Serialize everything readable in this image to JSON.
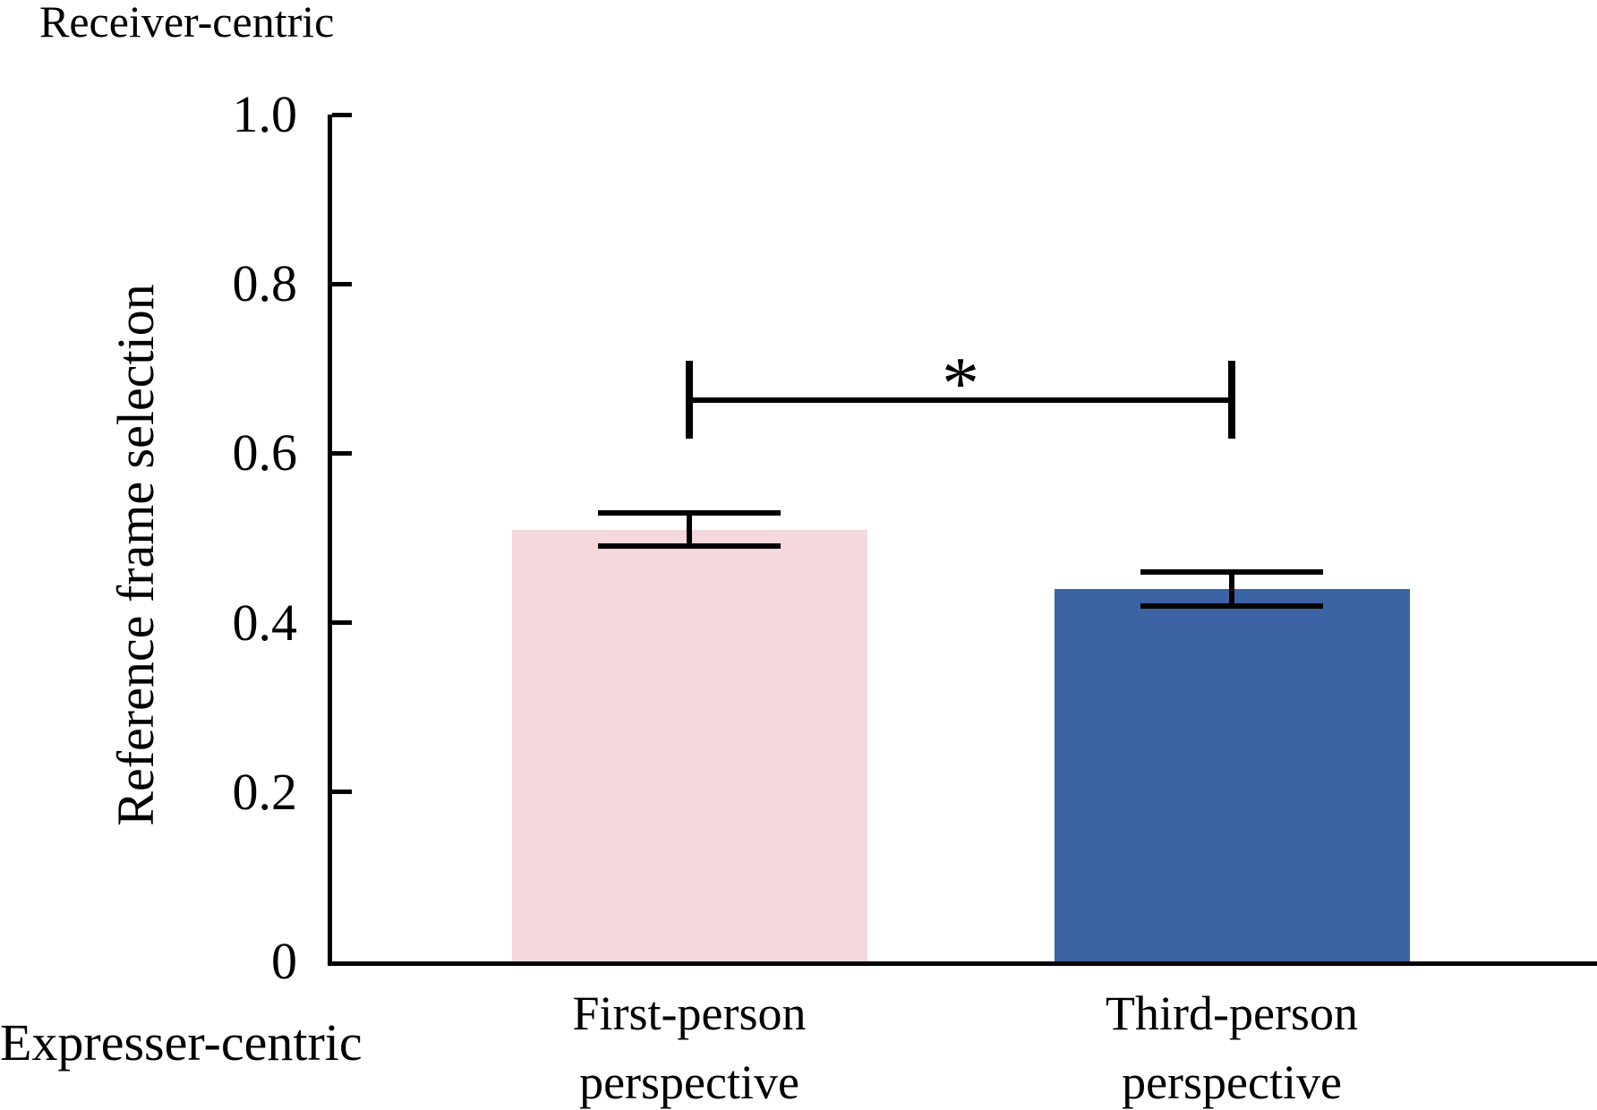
{
  "page": {
    "top_left_label": "Receiver-centric",
    "bottom_left_label": "Expresser-centric"
  },
  "chart_data": {
    "type": "bar",
    "title": "",
    "xlabel": "",
    "ylabel": "Reference frame selection",
    "categories": [
      "First-person\nperspective",
      "Third-person\nperspective"
    ],
    "values": [
      0.51,
      0.44
    ],
    "error_bars": [
      0.02,
      0.02
    ],
    "bar_colors": [
      "#F5D8DB",
      "#3C63A4"
    ],
    "axis_color": "#000000",
    "ylim": [
      0,
      1.0
    ],
    "y_tick_labels": [
      "1.0",
      "0.8",
      "0.6",
      "0.4",
      "0.2",
      "0"
    ],
    "y_tick_values": [
      1.0,
      0.8,
      0.6,
      0.4,
      0.2,
      0
    ],
    "grid": false,
    "legend": "none",
    "y_axis_endpoint_meanings": {
      "top": "Receiver-centric",
      "bottom": "Expresser-centric"
    },
    "significance": {
      "pair": [
        0,
        1
      ],
      "label": "*",
      "bar_y_value": 0.663,
      "tip_half_extent": 0.046
    }
  }
}
